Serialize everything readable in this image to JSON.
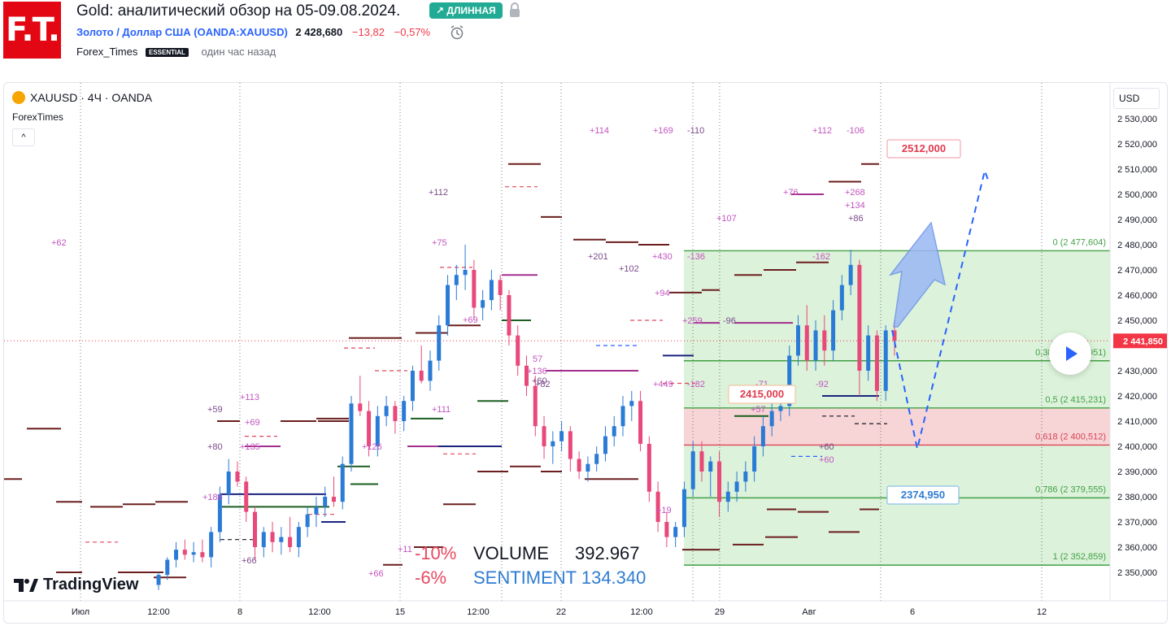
{
  "header": {
    "logo_text": "F.T.",
    "title": "Gold: аналитический обзор на 05-09.08.2024.",
    "badge": "↗ ДЛИННАЯ",
    "symbol_name": "Золото / Доллар США",
    "symbol_code": "(OANDA:XAUUSD)",
    "price": "2 428,680",
    "change": "−13,82",
    "change_pct": "−0,57%",
    "author": "Forex_Times",
    "author_badge": "ESSENTIAL",
    "time_ago": "один час назад"
  },
  "chart": {
    "legend": "XAUUSD · 4Ч · OANDA",
    "indicator": "ForexTimes",
    "collapse_label": "^",
    "currency_button": "USD",
    "price_axis": [
      "2 530,000",
      "2 520,000",
      "2 510,000",
      "2 500,000",
      "2 490,000",
      "2 480,000",
      "2 470,000",
      "2 460,000",
      "2 450,000",
      "2 440,000",
      "2 430,000",
      "2 420,000",
      "2 410,000",
      "2 400,000",
      "2 390,000",
      "2 380,000",
      "2 370,000",
      "2 360,000",
      "2 350,000"
    ],
    "current_price_label": "2 441,850",
    "time_axis": [
      "Июл",
      "12:00",
      "8",
      "12:00",
      "15",
      "12:00",
      "22",
      "12:00",
      "29",
      "Авг",
      "6",
      "12"
    ],
    "fib_levels": [
      {
        "label": "0 (2 477,604)"
      },
      {
        "label": "0,382 (2 433,951)"
      },
      {
        "label": "0,5 (2 415,231)"
      },
      {
        "label": "0,618 (2 400,512)"
      },
      {
        "label": "0,786 (2 379,555)"
      },
      {
        "label": "1 (2 352,859)"
      }
    ],
    "callouts": {
      "top": "2512,000",
      "mid": "2415,000",
      "low": "2374,950"
    },
    "annotations": [
      "+62",
      "+114",
      "+169",
      "-110",
      "+112",
      "-106",
      "+112",
      "+75",
      "+268",
      "+134",
      "+86",
      "+76",
      "+107",
      "+201",
      "+430",
      "-136",
      "-162",
      "+102",
      "+94",
      "+259",
      "-96",
      "+69",
      "57",
      "+136",
      "+60",
      "+449",
      "-182",
      "+82",
      "-71",
      "-92",
      "+57",
      "+59",
      "+113",
      "+69",
      "+80",
      "+135",
      "+111",
      "+126",
      "+60",
      "+60",
      "+186",
      "+66",
      "+11",
      "+66",
      "+19"
    ],
    "volume_label": "VOLUME",
    "volume_value": "392.967",
    "sentiment_label": "SENTIMENT",
    "sentiment_value": "134.340",
    "pct_up": "-10%",
    "pct_down": "-6%",
    "watermark": "TradingView"
  },
  "chart_data": {
    "type": "candlestick",
    "symbol": "XAUUSD",
    "interval": "4Ч",
    "ylim": [
      2345,
      2537
    ],
    "candles": [
      [
        2345,
        2350,
        2343,
        2349
      ],
      [
        2349,
        2356,
        2347,
        2355
      ],
      [
        2355,
        2362,
        2352,
        2359
      ],
      [
        2359,
        2363,
        2355,
        2357
      ],
      [
        2357,
        2362,
        2354,
        2358
      ],
      [
        2358,
        2363,
        2354,
        2356
      ],
      [
        2356,
        2368,
        2352,
        2366
      ],
      [
        2366,
        2384,
        2362,
        2381
      ],
      [
        2381,
        2395,
        2377,
        2390
      ],
      [
        2390,
        2394,
        2384,
        2386
      ],
      [
        2386,
        2388,
        2370,
        2374
      ],
      [
        2374,
        2376,
        2355,
        2360
      ],
      [
        2360,
        2368,
        2356,
        2366
      ],
      [
        2366,
        2370,
        2358,
        2362
      ],
      [
        2362,
        2368,
        2357,
        2364
      ],
      [
        2364,
        2372,
        2358,
        2360
      ],
      [
        2360,
        2370,
        2356,
        2368
      ],
      [
        2368,
        2376,
        2364,
        2373
      ],
      [
        2373,
        2380,
        2368,
        2376
      ],
      [
        2376,
        2384,
        2372,
        2380
      ],
      [
        2380,
        2388,
        2376,
        2378
      ],
      [
        2378,
        2396,
        2375,
        2393
      ],
      [
        2393,
        2420,
        2390,
        2417
      ],
      [
        2417,
        2428,
        2412,
        2414
      ],
      [
        2414,
        2418,
        2396,
        2400
      ],
      [
        2400,
        2416,
        2396,
        2412
      ],
      [
        2412,
        2420,
        2408,
        2416
      ],
      [
        2416,
        2418,
        2405,
        2410
      ],
      [
        2410,
        2420,
        2406,
        2418
      ],
      [
        2418,
        2432,
        2414,
        2430
      ],
      [
        2430,
        2440,
        2425,
        2426
      ],
      [
        2426,
        2438,
        2422,
        2434
      ],
      [
        2434,
        2452,
        2430,
        2448
      ],
      [
        2448,
        2468,
        2444,
        2464
      ],
      [
        2464,
        2472,
        2458,
        2468
      ],
      [
        2468,
        2480,
        2462,
        2470
      ],
      [
        2470,
        2474,
        2450,
        2455
      ],
      [
        2455,
        2462,
        2450,
        2458
      ],
      [
        2458,
        2470,
        2454,
        2466
      ],
      [
        2466,
        2468,
        2454,
        2460
      ],
      [
        2460,
        2462,
        2440,
        2444
      ],
      [
        2444,
        2448,
        2428,
        2432
      ],
      [
        2432,
        2436,
        2420,
        2424
      ],
      [
        2424,
        2428,
        2404,
        2408
      ],
      [
        2408,
        2412,
        2395,
        2400
      ],
      [
        2400,
        2406,
        2393,
        2402
      ],
      [
        2402,
        2410,
        2398,
        2406
      ],
      [
        2406,
        2408,
        2390,
        2395
      ],
      [
        2395,
        2398,
        2387,
        2390
      ],
      [
        2390,
        2396,
        2386,
        2393
      ],
      [
        2393,
        2400,
        2390,
        2397
      ],
      [
        2397,
        2408,
        2394,
        2404
      ],
      [
        2404,
        2412,
        2400,
        2408
      ],
      [
        2408,
        2420,
        2404,
        2416
      ],
      [
        2416,
        2422,
        2410,
        2418
      ],
      [
        2418,
        2422,
        2398,
        2401
      ],
      [
        2401,
        2404,
        2378,
        2382
      ],
      [
        2382,
        2386,
        2366,
        2370
      ],
      [
        2370,
        2374,
        2360,
        2364
      ],
      [
        2364,
        2370,
        2360,
        2368
      ],
      [
        2368,
        2386,
        2364,
        2383
      ],
      [
        2383,
        2402,
        2380,
        2398
      ],
      [
        2398,
        2402,
        2386,
        2390
      ],
      [
        2390,
        2396,
        2380,
        2394
      ],
      [
        2394,
        2398,
        2372,
        2378
      ],
      [
        2378,
        2386,
        2374,
        2382
      ],
      [
        2382,
        2390,
        2378,
        2386
      ],
      [
        2386,
        2394,
        2382,
        2390
      ],
      [
        2390,
        2404,
        2386,
        2400
      ],
      [
        2400,
        2412,
        2396,
        2408
      ],
      [
        2408,
        2418,
        2404,
        2414
      ],
      [
        2414,
        2420,
        2410,
        2416
      ],
      [
        2416,
        2440,
        2412,
        2436
      ],
      [
        2436,
        2452,
        2432,
        2448
      ],
      [
        2448,
        2456,
        2430,
        2434
      ],
      [
        2434,
        2450,
        2430,
        2446
      ],
      [
        2446,
        2452,
        2432,
        2438
      ],
      [
        2438,
        2458,
        2434,
        2454
      ],
      [
        2454,
        2468,
        2450,
        2464
      ],
      [
        2464,
        2478,
        2460,
        2472
      ],
      [
        2472,
        2474,
        2420,
        2430
      ],
      [
        2430,
        2448,
        2426,
        2444
      ],
      [
        2444,
        2446,
        2418,
        2422
      ],
      [
        2422,
        2448,
        2418,
        2446
      ],
      [
        2446,
        2450,
        2436,
        2441.85
      ]
    ]
  }
}
